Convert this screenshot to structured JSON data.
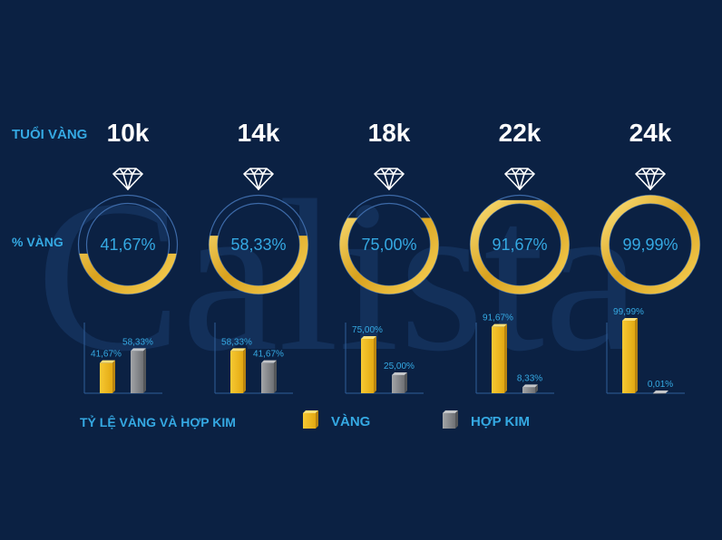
{
  "labels": {
    "karat_row": "TUỔI VÀNG",
    "percent_row": "% VÀNG",
    "ratio_title": "TỶ LỆ VÀNG VÀ HỢP KIM"
  },
  "watermark": "Calista",
  "legend": {
    "gold": "VÀNG",
    "alloy": "HỢP KIM"
  },
  "colors": {
    "background": "#0b2143",
    "accent_text": "#35a9e3",
    "gold": "#f2b820",
    "alloy": "#8a8c90",
    "ring_outline": "#3d6aa8"
  },
  "chart_data": {
    "type": "bar",
    "categories": [
      "10k",
      "14k",
      "18k",
      "22k",
      "24k"
    ],
    "series": [
      {
        "name": "VÀNG",
        "values": [
          41.67,
          58.33,
          75.0,
          91.67,
          99.99
        ],
        "labels": [
          "41,67%",
          "58,33%",
          "75,00%",
          "91,67%",
          "99,99%"
        ]
      },
      {
        "name": "HỢP KIM",
        "values": [
          58.33,
          41.67,
          25.0,
          8.33,
          0.01
        ],
        "labels": [
          "58,33%",
          "41,67%",
          "25,00%",
          "8,33%",
          "0,01%"
        ]
      }
    ],
    "ring_labels": [
      "41,67%",
      "58,33%",
      "75,00%",
      "91,67%",
      "99,99%"
    ],
    "ylim": [
      0,
      100
    ]
  }
}
